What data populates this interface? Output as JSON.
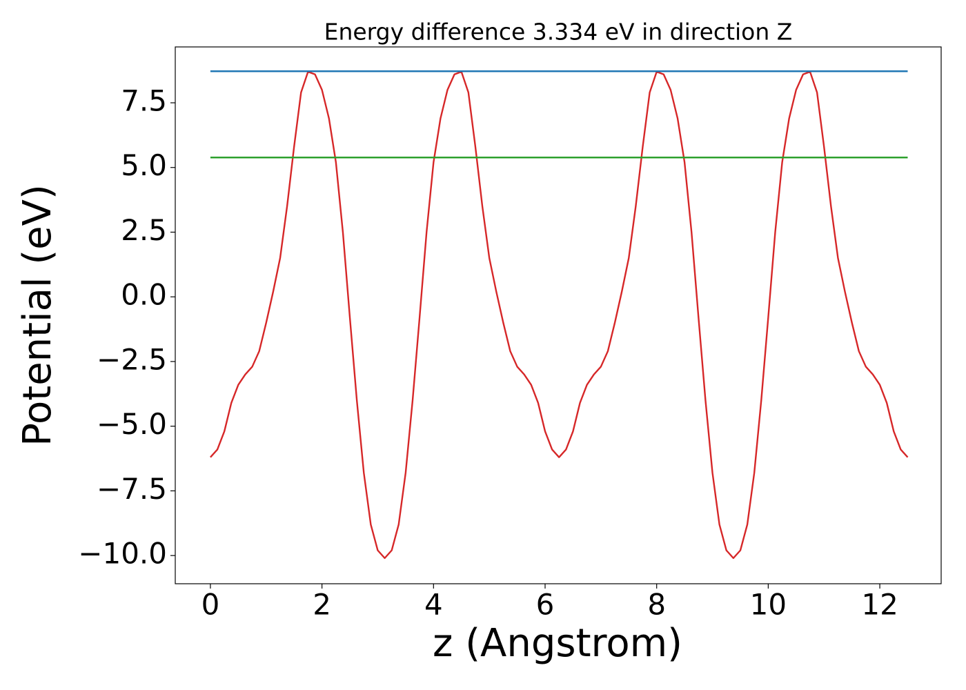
{
  "chart_data": {
    "type": "line",
    "title": "Energy difference 3.334 eV in direction Z",
    "xlabel": "z (Angstrom)",
    "ylabel": "Potential (eV)",
    "xlim": [
      -0.63,
      13.1
    ],
    "ylim": [
      -11.09,
      9.66
    ],
    "xticks": [
      0,
      2,
      4,
      6,
      8,
      10,
      12
    ],
    "yticks": [
      {
        "value": -10,
        "label": "−10.0"
      },
      {
        "value": -7.5,
        "label": "−7.5"
      },
      {
        "value": -5,
        "label": "−5.0"
      },
      {
        "value": -2.5,
        "label": "−2.5"
      },
      {
        "value": 0,
        "label": "0.0"
      },
      2.5,
      {
        "value": 5,
        "label": "5.0"
      },
      7.5
    ],
    "grid": false,
    "series": [
      {
        "color": "#d62728",
        "x": [
          0,
          0.125,
          0.25,
          0.375,
          0.5,
          0.625,
          0.75,
          0.875,
          1,
          1.125,
          1.25,
          1.375,
          1.5,
          1.625,
          1.75,
          1.875,
          2,
          2.125,
          2.25,
          2.375,
          2.5,
          2.625,
          2.75,
          2.875,
          3,
          3.125,
          3.25,
          3.375,
          3.5,
          3.625,
          3.75,
          3.875,
          4,
          4.125,
          4.25,
          4.375,
          4.5,
          4.625,
          4.75,
          4.875,
          5,
          5.125,
          5.25,
          5.375,
          5.5,
          5.625,
          5.75,
          5.875,
          6,
          6.125,
          6.25,
          6.375,
          6.5,
          6.625,
          6.75,
          6.875,
          7,
          7.125,
          7.25,
          7.375,
          7.5,
          7.625,
          7.75,
          7.875,
          8,
          8.125,
          8.25,
          8.375,
          8.5,
          8.625,
          8.75,
          8.875,
          9,
          9.125,
          9.25,
          9.375,
          9.5,
          9.625,
          9.75,
          9.875,
          10,
          10.125,
          10.25,
          10.375,
          10.5,
          10.625,
          10.75,
          10.875,
          11,
          11.125,
          11.25,
          11.375,
          11.5,
          11.625,
          11.75,
          11.875,
          12,
          12.125,
          12.25,
          12.375,
          12.5
        ],
        "values": [
          -6.2,
          -5.9,
          -5.2,
          -4.1,
          -3.4,
          -3.0,
          -2.7,
          -2.1,
          -1.0,
          0.2,
          1.5,
          3.5,
          5.8,
          7.9,
          8.7,
          8.6,
          8.0,
          6.9,
          5.2,
          2.5,
          -0.8,
          -4.0,
          -6.8,
          -8.8,
          -9.8,
          -10.1,
          -9.8,
          -8.8,
          -6.8,
          -4.0,
          -0.8,
          2.5,
          5.2,
          6.9,
          8.0,
          8.6,
          8.7,
          7.9,
          5.8,
          3.5,
          1.5,
          0.2,
          -1.0,
          -2.1,
          -2.7,
          -3.0,
          -3.4,
          -4.1,
          -5.2,
          -5.9,
          -6.2,
          -5.9,
          -5.2,
          -4.1,
          -3.4,
          -3.0,
          -2.7,
          -2.1,
          -1.0,
          0.2,
          1.5,
          3.5,
          5.8,
          7.9,
          8.7,
          8.6,
          8.0,
          6.9,
          5.2,
          2.5,
          -0.8,
          -4.0,
          -6.8,
          -8.8,
          -9.8,
          -10.1,
          -9.8,
          -8.8,
          -6.8,
          -4.0,
          -0.8,
          2.5,
          5.2,
          6.9,
          8.0,
          8.6,
          8.7,
          7.9,
          5.8,
          3.5,
          1.5,
          0.2,
          -1.0,
          -2.1,
          -2.7,
          -3.0,
          -3.4,
          -4.1,
          -5.2,
          -5.9,
          -6.2
        ]
      },
      {
        "color": "#1f77b4",
        "x": [
          0,
          12.5
        ],
        "values": [
          8.72,
          8.72
        ]
      },
      {
        "color": "#2ca02c",
        "x": [
          0,
          12.5
        ],
        "values": [
          5.386,
          5.386
        ]
      }
    ]
  }
}
